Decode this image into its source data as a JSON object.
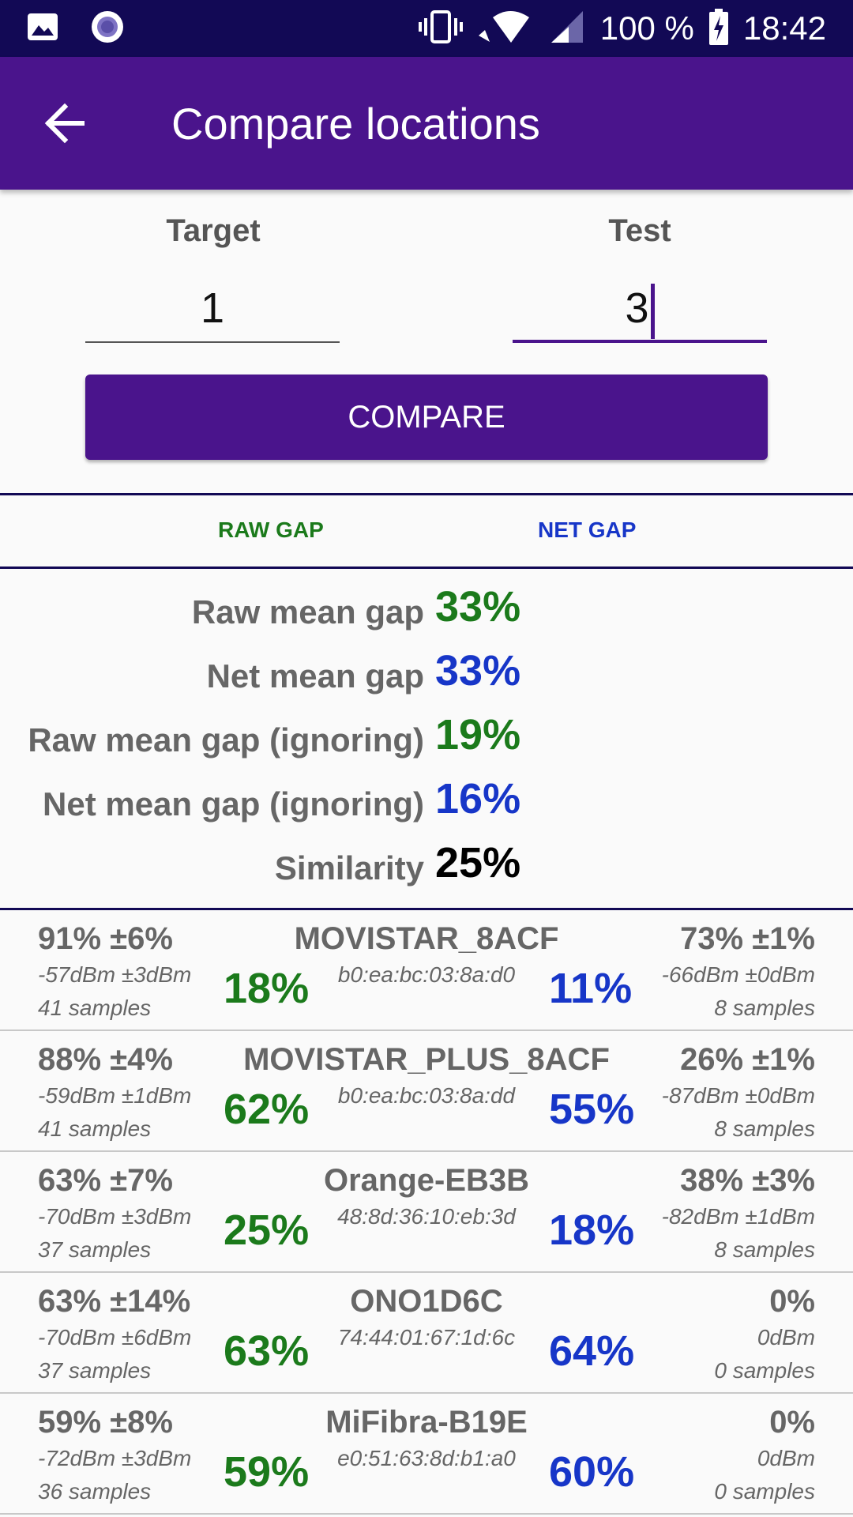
{
  "status_bar": {
    "battery": "100 %",
    "time": "18:42",
    "icons": [
      "image-icon",
      "radio-circle-icon",
      "vibrate-icon",
      "wifi-icon",
      "signal-icon",
      "battery-charging-icon"
    ]
  },
  "app_bar": {
    "title": "Compare locations",
    "back_icon": "arrow-back-icon"
  },
  "form": {
    "target_label": "Target",
    "target_value": "1",
    "test_label": "Test",
    "test_value": "3",
    "compare_label": "COMPARE"
  },
  "tabs": [
    {
      "label": "RAW GAP",
      "color": "#1b7a1b"
    },
    {
      "label": "NET GAP",
      "color": "#1736c8"
    }
  ],
  "stats": [
    {
      "label": "Raw mean gap",
      "value": "33%",
      "color": "#1b7a1b"
    },
    {
      "label": "Net mean gap",
      "value": "33%",
      "color": "#1736c8"
    },
    {
      "label": "Raw mean gap (ignoring)",
      "value": "19%",
      "color": "#1b7a1b"
    },
    {
      "label": "Net mean gap (ignoring)",
      "value": "16%",
      "color": "#1736c8"
    },
    {
      "label": "Similarity",
      "value": "25%",
      "color": "#000000"
    }
  ],
  "access_points": [
    {
      "left_pct": "91% ±6%",
      "left_dbm": "-57dBm ±3dBm",
      "left_samples": "41 samples",
      "raw_gap": "18%",
      "ssid": "MOVISTAR_8ACF",
      "bssid": "b0:ea:bc:03:8a:d0",
      "net_gap": "11%",
      "right_pct": "73% ±1%",
      "right_dbm": "-66dBm ±0dBm",
      "right_samples": "8 samples"
    },
    {
      "left_pct": "88% ±4%",
      "left_dbm": "-59dBm ±1dBm",
      "left_samples": "41 samples",
      "raw_gap": "62%",
      "ssid": "MOVISTAR_PLUS_8ACF",
      "bssid": "b0:ea:bc:03:8a:dd",
      "net_gap": "55%",
      "right_pct": "26% ±1%",
      "right_dbm": "-87dBm ±0dBm",
      "right_samples": "8 samples"
    },
    {
      "left_pct": "63% ±7%",
      "left_dbm": "-70dBm ±3dBm",
      "left_samples": "37 samples",
      "raw_gap": "25%",
      "ssid": "Orange-EB3B",
      "bssid": "48:8d:36:10:eb:3d",
      "net_gap": "18%",
      "right_pct": "38% ±3%",
      "right_dbm": "-82dBm ±1dBm",
      "right_samples": "8 samples"
    },
    {
      "left_pct": "63% ±14%",
      "left_dbm": "-70dBm ±6dBm",
      "left_samples": "37 samples",
      "raw_gap": "63%",
      "ssid": "ONO1D6C",
      "bssid": "74:44:01:67:1d:6c",
      "net_gap": "64%",
      "right_pct": "0%",
      "right_dbm": "0dBm",
      "right_samples": "0 samples"
    },
    {
      "left_pct": "59% ±8%",
      "left_dbm": "-72dBm ±3dBm",
      "left_samples": "36 samples",
      "raw_gap": "59%",
      "ssid": "MiFibra-B19E",
      "bssid": "e0:51:63:8d:b1:a0",
      "net_gap": "60%",
      "right_pct": "0%",
      "right_dbm": "0dBm",
      "right_samples": "0 samples"
    }
  ]
}
